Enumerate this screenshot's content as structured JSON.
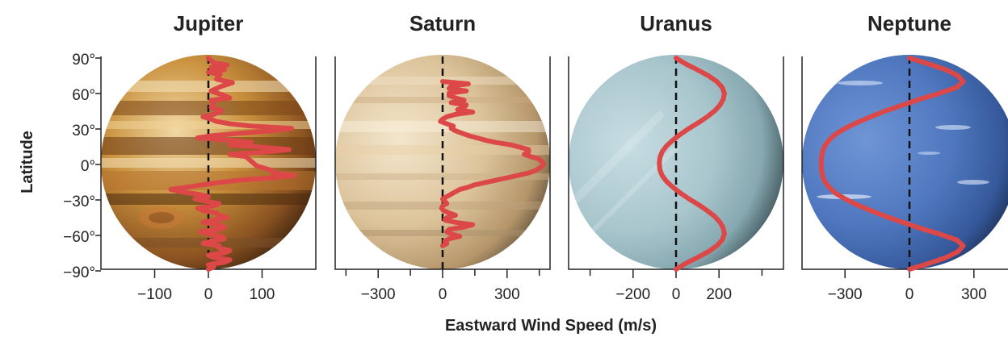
{
  "figure": {
    "y_axis_title": "Latitude",
    "x_axis_title": "Eastward Wind Speed (m/s)"
  },
  "colors": {
    "wind_profile": "#dc4848",
    "axes": "#222222",
    "jupiter": [
      "#f2d9a6",
      "#c8903c",
      "#8a5220",
      "#3e2410"
    ],
    "saturn": [
      "#f3e6cc",
      "#dcc39a",
      "#b5966a",
      "#4a3e30"
    ],
    "uranus": [
      "#c6dde2",
      "#a9c6cd",
      "#86a8b0",
      "#2c3c42"
    ],
    "neptune": [
      "#6f95d6",
      "#4f77be",
      "#35589a",
      "#16223f"
    ]
  },
  "chart_data": [
    {
      "type": "line",
      "title": "Jupiter",
      "xlabel": "Eastward Wind Speed (m/s)",
      "ylabel": "Latitude",
      "xlim": [
        -200,
        200
      ],
      "ylim": [
        -90,
        90
      ],
      "x_tick_labels": [
        "−100",
        "0",
        "100"
      ],
      "x_tick_values": [
        -100,
        0,
        100
      ],
      "y_tick_labels": [
        "−90°",
        "−60°",
        "−30°",
        "0°",
        "30°",
        "60°",
        "90°"
      ],
      "y_tick_values": [
        -90,
        -60,
        -30,
        0,
        30,
        60,
        90
      ],
      "zero_line": true,
      "series": [
        {
          "latitude": [
            90,
            86,
            84,
            82,
            80,
            78,
            76,
            72,
            69,
            66,
            62,
            58,
            56,
            54,
            51,
            48,
            45,
            42,
            40,
            38,
            36,
            34,
            32,
            30,
            28,
            26,
            24,
            22,
            20,
            18,
            16,
            14,
            12,
            10,
            8,
            6,
            2,
            -2,
            -6,
            -8,
            -10,
            -12,
            -14,
            -16,
            -18,
            -20,
            -22,
            -24,
            -26,
            -28,
            -30,
            -32,
            -34,
            -36,
            -38,
            -40,
            -42,
            -44,
            -46,
            -48,
            -50,
            -52,
            -54,
            -56,
            -58,
            -60,
            -62,
            -64,
            -66,
            -68,
            -70,
            -72,
            -74,
            -76,
            -78,
            -80,
            -82,
            -84,
            -86,
            -88,
            -90
          ],
          "speed": [
            0,
            10,
            35,
            5,
            30,
            0,
            22,
            15,
            45,
            25,
            5,
            30,
            40,
            5,
            10,
            5,
            25,
            10,
            -10,
            5,
            15,
            40,
            80,
            155,
            120,
            60,
            10,
            -20,
            40,
            80,
            40,
            100,
            150,
            110,
            40,
            70,
            80,
            90,
            120,
            120,
            160,
            120,
            60,
            20,
            -10,
            -40,
            -70,
            -50,
            -20,
            0,
            -25,
            -5,
            20,
            10,
            -20,
            -10,
            15,
            20,
            35,
            10,
            -10,
            20,
            30,
            20,
            -15,
            0,
            25,
            30,
            5,
            -10,
            20,
            20,
            40,
            30,
            0,
            10,
            40,
            30,
            0,
            10,
            0
          ]
        }
      ]
    },
    {
      "type": "line",
      "title": "Saturn",
      "xlabel": "Eastward Wind Speed (m/s)",
      "ylabel": "Latitude",
      "xlim": [
        -500,
        500
      ],
      "ylim": [
        -90,
        90
      ],
      "x_tick_labels": [
        "−300",
        "0",
        "300"
      ],
      "x_tick_values": [
        -300,
        0,
        300
      ],
      "zero_line": true,
      "series": [
        {
          "latitude": [
            70,
            68,
            66,
            64,
            62,
            60,
            58,
            56,
            54,
            52,
            50,
            48,
            46,
            44,
            42,
            40,
            38,
            36,
            34,
            32,
            30,
            28,
            26,
            24,
            22,
            20,
            18,
            16,
            14,
            12,
            10,
            8,
            6,
            4,
            2,
            0,
            -2,
            -4,
            -6,
            -8,
            -10,
            -12,
            -14,
            -16,
            -18,
            -20,
            -22,
            -24,
            -26,
            -28,
            -30,
            -32,
            -34,
            -36,
            -38,
            -40,
            -42,
            -44,
            -46,
            -48,
            -50,
            -52,
            -54,
            -56,
            -58,
            -60,
            -62,
            -64,
            -66,
            -68,
            -70
          ],
          "speed": [
            0,
            120,
            40,
            30,
            110,
            30,
            30,
            60,
            100,
            40,
            110,
            100,
            70,
            140,
            60,
            20,
            0,
            -10,
            20,
            50,
            40,
            60,
            90,
            120,
            160,
            200,
            250,
            320,
            360,
            400,
            400,
            380,
            410,
            450,
            460,
            470,
            465,
            450,
            430,
            400,
            350,
            300,
            250,
            200,
            150,
            120,
            80,
            60,
            40,
            20,
            0,
            10,
            20,
            0,
            -5,
            5,
            30,
            60,
            20,
            10,
            60,
            140,
            100,
            30,
            20,
            40,
            80,
            30,
            10,
            20,
            0
          ]
        }
      ]
    },
    {
      "type": "line",
      "title": "Uranus",
      "xlabel": "Eastward Wind Speed (m/s)",
      "ylabel": "Latitude",
      "xlim": [
        -500,
        500
      ],
      "ylim": [
        -90,
        90
      ],
      "x_tick_labels": [
        "−200",
        "0",
        "200"
      ],
      "x_tick_values": [
        -200,
        0,
        200
      ],
      "zero_line": true,
      "series": [
        {
          "latitude": [
            90,
            85,
            80,
            75,
            70,
            65,
            60,
            55,
            50,
            45,
            40,
            35,
            30,
            25,
            20,
            15,
            10,
            5,
            0,
            -5,
            -10,
            -15,
            -20,
            -25,
            -30,
            -35,
            -40,
            -45,
            -50,
            -55,
            -60,
            -65,
            -70,
            -75,
            -80,
            -85,
            -90
          ],
          "speed": [
            0,
            45,
            100,
            150,
            190,
            215,
            225,
            220,
            205,
            180,
            145,
            105,
            60,
            20,
            -15,
            -45,
            -65,
            -75,
            -78,
            -75,
            -65,
            -45,
            -15,
            20,
            60,
            105,
            145,
            180,
            205,
            220,
            225,
            215,
            190,
            150,
            100,
            45,
            0
          ]
        }
      ]
    },
    {
      "type": "line",
      "title": "Neptune",
      "xlabel": "Eastward Wind Speed (m/s)",
      "ylabel": "Latitude",
      "xlim": [
        -500,
        500
      ],
      "ylim": [
        -90,
        90
      ],
      "x_tick_labels": [
        "−300",
        "0",
        "300"
      ],
      "x_tick_values": [
        -300,
        0,
        300
      ],
      "zero_line": true,
      "series": [
        {
          "latitude": [
            90,
            85,
            80,
            75,
            70,
            65,
            60,
            55,
            50,
            45,
            40,
            35,
            30,
            25,
            20,
            15,
            10,
            5,
            0,
            -5,
            -10,
            -15,
            -20,
            -25,
            -30,
            -35,
            -40,
            -45,
            -50,
            -55,
            -60,
            -65,
            -70,
            -75,
            -80,
            -85,
            -90
          ],
          "speed": [
            0,
            90,
            170,
            225,
            250,
            220,
            140,
            50,
            -30,
            -110,
            -180,
            -245,
            -300,
            -345,
            -375,
            -395,
            -405,
            -410,
            -410,
            -410,
            -405,
            -395,
            -375,
            -345,
            -300,
            -245,
            -180,
            -110,
            -30,
            50,
            140,
            220,
            250,
            225,
            170,
            90,
            0
          ]
        }
      ]
    }
  ]
}
